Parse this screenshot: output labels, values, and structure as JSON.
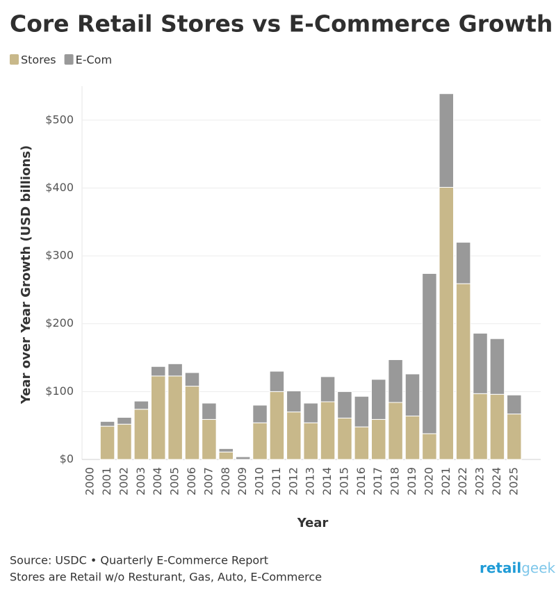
{
  "chart_data": {
    "type": "stacked-bar",
    "title": "Core Retail Stores vs E-Commerce Growth",
    "x_label": "Year",
    "y_label": "Year over Year Growth (USD billions)",
    "categories": [
      "2000",
      "2001",
      "2002",
      "2003",
      "2004",
      "2005",
      "2006",
      "2007",
      "2008",
      "2009",
      "2010",
      "2011",
      "2012",
      "2013",
      "2014",
      "2015",
      "2016",
      "2017",
      "2018",
      "2019",
      "2020",
      "2021",
      "2022",
      "2023",
      "2024",
      "2025"
    ],
    "series": [
      {
        "name": "Stores",
        "color": "#c8b88a",
        "values": [
          null,
          49,
          52,
          74,
          123,
          123,
          108,
          59,
          11,
          0,
          54,
          100,
          70,
          54,
          85,
          61,
          48,
          59,
          84,
          64,
          38,
          401,
          259,
          97,
          96,
          67
        ]
      },
      {
        "name": "E-Com",
        "color": "#999999",
        "values": [
          null,
          7,
          10,
          12,
          14,
          18,
          20,
          24,
          5,
          4,
          26,
          30,
          31,
          29,
          37,
          39,
          45,
          59,
          63,
          62,
          236,
          138,
          61,
          89,
          82,
          28
        ]
      }
    ],
    "ylim": [
      0,
      550
    ],
    "yticks": [
      {
        "value": 0,
        "label": "$0"
      },
      {
        "value": 100,
        "label": "$100"
      },
      {
        "value": 200,
        "label": "$200"
      },
      {
        "value": 300,
        "label": "$300"
      },
      {
        "value": 400,
        "label": "$400"
      },
      {
        "value": 500,
        "label": "$500"
      }
    ],
    "grid": true,
    "legend": "top-left",
    "source": "Source: USDC • Quarterly E-Commerce Report",
    "note": "Stores are Retail w/o Resturant, Gas, Auto, E-Commerce",
    "logo": [
      "retail",
      "geek"
    ]
  }
}
